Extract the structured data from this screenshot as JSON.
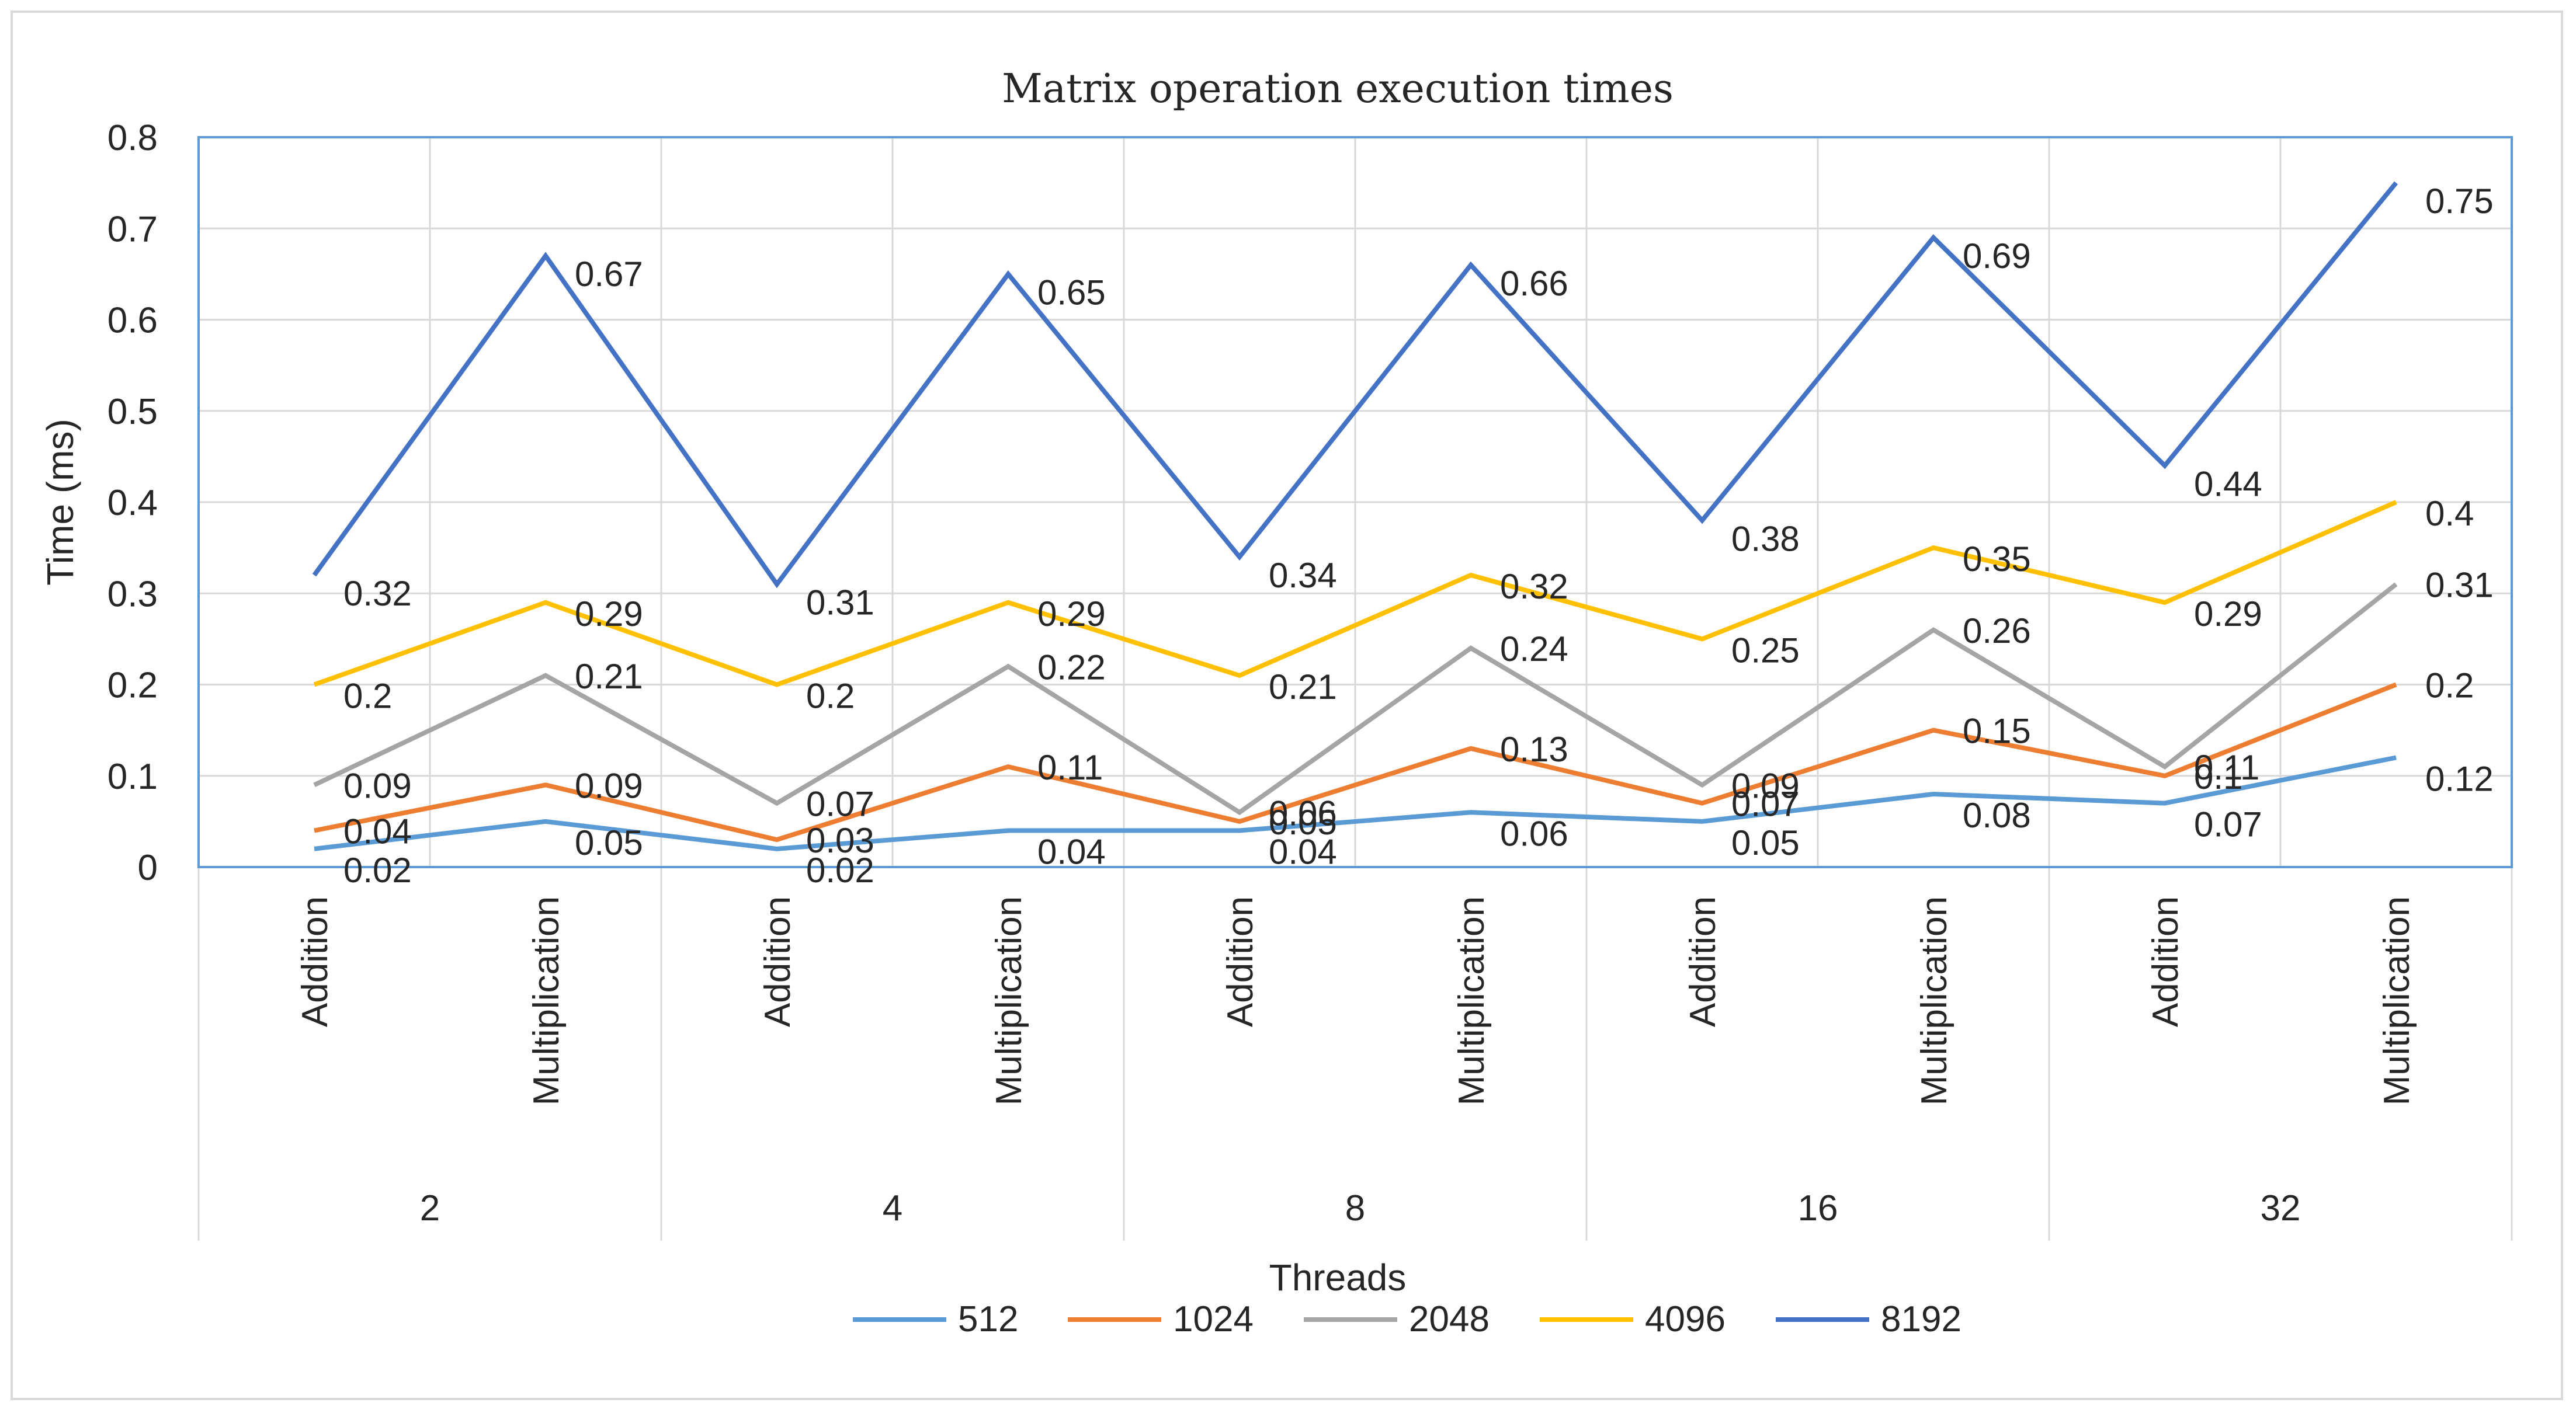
{
  "chart_data": {
    "type": "line",
    "title": "Matrix operation execution times",
    "xlabel": "Threads",
    "ylabel": "Time (ms)",
    "ylim": [
      0,
      0.8
    ],
    "yticks": [
      "0",
      "0.1",
      "0.2",
      "0.3",
      "0.4",
      "0.5",
      "0.6",
      "0.7",
      "0.8"
    ],
    "ytick_values": [
      0,
      0.1,
      0.2,
      0.3,
      0.4,
      0.5,
      0.6,
      0.7,
      0.8
    ],
    "groups": [
      "2",
      "4",
      "8",
      "16",
      "32"
    ],
    "categories": [
      "Addition",
      "Multiplication",
      "Addition",
      "Multiplication",
      "Addition",
      "Multiplication",
      "Addition",
      "Multiplication",
      "Addition",
      "Multiplication"
    ],
    "legend_position": "bottom",
    "grid": true,
    "series": [
      {
        "name": "512",
        "color": "#5b9bd5",
        "values": [
          0.02,
          0.05,
          0.02,
          0.04,
          0.04,
          0.06,
          0.05,
          0.08,
          0.07,
          0.12
        ],
        "labels": [
          "0.02",
          "0.05",
          "0.02",
          "0.04",
          "0.04",
          "0.06",
          "0.05",
          "0.08",
          "0.07",
          "0.12"
        ]
      },
      {
        "name": "1024",
        "color": "#ed7d31",
        "values": [
          0.04,
          0.09,
          0.03,
          0.11,
          0.05,
          0.13,
          0.07,
          0.15,
          0.1,
          0.2
        ],
        "labels": [
          "0.04",
          "0.09",
          "0.03",
          "0.11",
          "0.05",
          "0.13",
          "0.07",
          "0.15",
          "0.1",
          "0.2"
        ]
      },
      {
        "name": "2048",
        "color": "#a5a5a5",
        "values": [
          0.09,
          0.21,
          0.07,
          0.22,
          0.06,
          0.24,
          0.09,
          0.26,
          0.11,
          0.31
        ],
        "labels": [
          "0.09",
          "0.21",
          "0.07",
          "0.22",
          "0.06",
          "0.24",
          "0.09",
          "0.26",
          "0.11",
          "0.31"
        ]
      },
      {
        "name": "4096",
        "color": "#ffc000",
        "values": [
          0.2,
          0.29,
          0.2,
          0.29,
          0.21,
          0.32,
          0.25,
          0.35,
          0.29,
          0.4
        ],
        "labels": [
          "0.2",
          "0.29",
          "0.2",
          "0.29",
          "0.21",
          "0.32",
          "0.25",
          "0.35",
          "0.29",
          "0.4"
        ]
      },
      {
        "name": "8192",
        "color": "#4472c4",
        "values": [
          0.32,
          0.67,
          0.31,
          0.65,
          0.34,
          0.66,
          0.38,
          0.69,
          0.44,
          0.75
        ],
        "labels": [
          "0.32",
          "0.67",
          "0.31",
          "0.65",
          "0.34",
          "0.66",
          "0.38",
          "0.69",
          "0.44",
          "0.75"
        ]
      }
    ]
  }
}
